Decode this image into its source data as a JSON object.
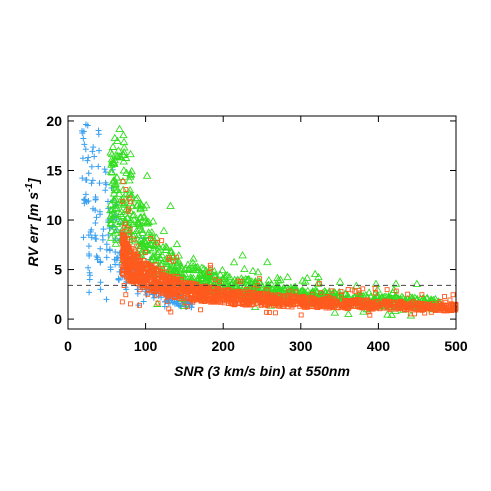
{
  "chart_data": {
    "type": "scatter",
    "title": "",
    "xlabel": "SNR (3 km/s bin) at 550nm",
    "ylabel_main": "RV err [m s",
    "ylabel_sup": "-1",
    "ylabel_end": "]",
    "xlim": [
      0,
      500
    ],
    "ylim": [
      -1,
      20.5
    ],
    "xticks": [
      0,
      100,
      200,
      300,
      400,
      500
    ],
    "yticks": [
      0,
      5,
      10,
      15,
      20
    ],
    "grid": false,
    "legend": "none",
    "reference_line": {
      "y": 3.4,
      "style": "dashed"
    },
    "series": [
      {
        "marker": "plus",
        "color": "#3aa0f0",
        "values_note": "",
        "x": [
          18,
          22,
          25,
          28,
          30,
          32,
          35,
          38,
          40,
          42,
          45,
          48,
          50,
          52,
          55,
          58,
          60,
          62,
          65,
          68,
          70,
          72,
          75,
          78,
          80,
          85,
          90,
          95,
          100,
          110,
          120,
          130,
          140,
          150,
          160
        ],
        "y": [
          19,
          12,
          16,
          4,
          9,
          14,
          11,
          6,
          17,
          3,
          8,
          13,
          7,
          10,
          5,
          12,
          6,
          9,
          4,
          8,
          5,
          7,
          3,
          6,
          4,
          5,
          3,
          4,
          3,
          2.5,
          2.2,
          2.0,
          1.8,
          1.6,
          1.5
        ]
      },
      {
        "marker": "triangle",
        "color": "#33dd22",
        "x": [
          55,
          60,
          62,
          65,
          68,
          70,
          72,
          75,
          78,
          80,
          85,
          90,
          95,
          100,
          110,
          120,
          130,
          140,
          150,
          160,
          170,
          180,
          190,
          200,
          210,
          220,
          230,
          240,
          250,
          260,
          270,
          280,
          290,
          300,
          320,
          340,
          360,
          380,
          400,
          420,
          440,
          460,
          480
        ],
        "y": [
          10,
          14,
          8,
          17,
          12,
          9,
          15,
          11,
          7,
          13,
          10,
          8,
          9,
          7,
          6,
          5.5,
          5,
          4.5,
          4.2,
          4,
          3.8,
          3.5,
          3.3,
          3.1,
          3,
          2.9,
          2.8,
          2.7,
          2.6,
          2.5,
          2.4,
          2.3,
          2.2,
          2.1,
          2,
          1.9,
          1.8,
          1.7,
          1.6,
          1.6,
          1.5,
          1.5,
          1.4
        ]
      },
      {
        "marker": "square",
        "color": "#ff5a1e",
        "x": [
          70,
          80,
          90,
          100,
          110,
          120,
          130,
          140,
          150,
          160,
          170,
          180,
          190,
          200,
          210,
          220,
          230,
          240,
          250,
          260,
          270,
          280,
          290,
          300,
          320,
          340,
          360,
          380,
          400,
          420,
          440,
          460,
          480,
          500
        ],
        "y": [
          6,
          5,
          4.5,
          4,
          3.6,
          3.3,
          3,
          2.8,
          2.6,
          2.5,
          2.4,
          2.3,
          2.2,
          2.1,
          2,
          1.95,
          1.9,
          1.85,
          1.8,
          1.75,
          1.7,
          1.65,
          1.6,
          1.55,
          1.5,
          1.45,
          1.4,
          1.35,
          1.3,
          1.25,
          1.2,
          1.15,
          1.1,
          1.05
        ]
      }
    ]
  }
}
